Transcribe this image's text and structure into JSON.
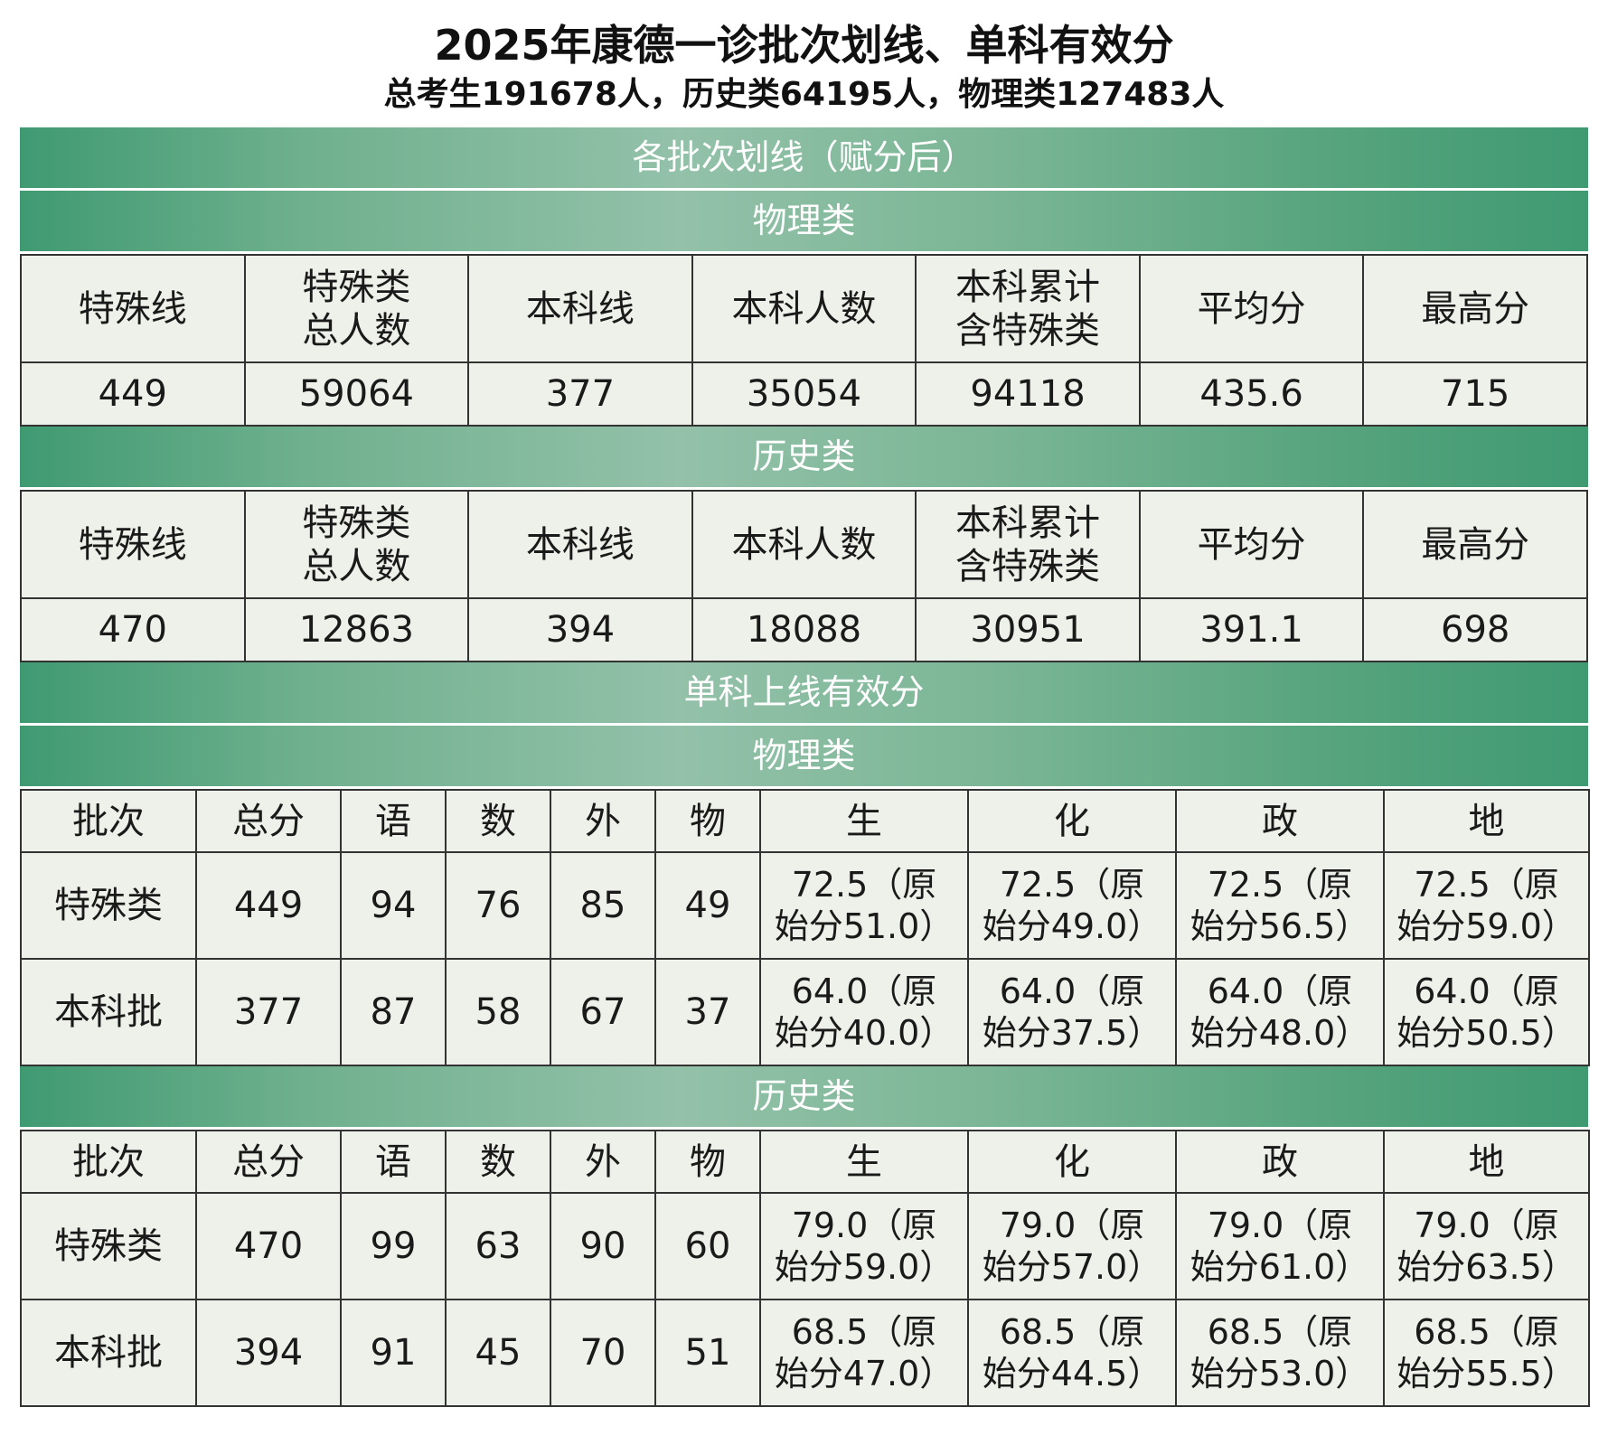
{
  "title": "2025年康德一诊批次划线、单科有效分",
  "subtitle": "总考生191678人，历史类64195人，物理类127483人",
  "batch_section": {
    "title": "各批次划线（赋分后）",
    "headers": [
      "特殊线",
      "特殊类\n总人数",
      "本科线",
      "本科人数",
      "本科累计\n含特殊类",
      "平均分",
      "最高分"
    ],
    "physics": {
      "label": "物理类",
      "values": [
        "449",
        "59064",
        "377",
        "35054",
        "94118",
        "435.6",
        "715"
      ]
    },
    "history": {
      "label": "历史类",
      "values": [
        "470",
        "12863",
        "394",
        "18088",
        "30951",
        "391.1",
        "698"
      ]
    }
  },
  "subject_section": {
    "title": "单科上线有效分",
    "headers": [
      "批次",
      "总分",
      "语",
      "数",
      "外",
      "物",
      "生",
      "化",
      "政",
      "地"
    ],
    "physics": {
      "label": "物理类",
      "rows": [
        [
          "特殊类",
          "449",
          "94",
          "76",
          "85",
          "49",
          "72.5（原\n始分51.0）",
          "72.5（原\n始分49.0）",
          "72.5（原\n始分56.5）",
          "72.5（原\n始分59.0）"
        ],
        [
          "本科批",
          "377",
          "87",
          "58",
          "67",
          "37",
          "64.0（原\n始分40.0）",
          "64.0（原\n始分37.5）",
          "64.0（原\n始分48.0）",
          "64.0（原\n始分50.5）"
        ]
      ]
    },
    "history": {
      "label": "历史类",
      "rows": [
        [
          "特殊类",
          "470",
          "99",
          "63",
          "90",
          "60",
          "79.0（原\n始分59.0）",
          "79.0（原\n始分57.0）",
          "79.0（原\n始分61.0）",
          "79.0（原\n始分63.5）"
        ],
        [
          "本科批",
          "394",
          "91",
          "45",
          "70",
          "51",
          "68.5（原\n始分47.0）",
          "68.5（原\n始分44.5）",
          "68.5（原\n始分53.0）",
          "68.5（原\n始分55.5）"
        ]
      ]
    }
  },
  "colors": {
    "band": "#5aa680",
    "cell_bg": "#eef0ea",
    "border": "#333333"
  }
}
